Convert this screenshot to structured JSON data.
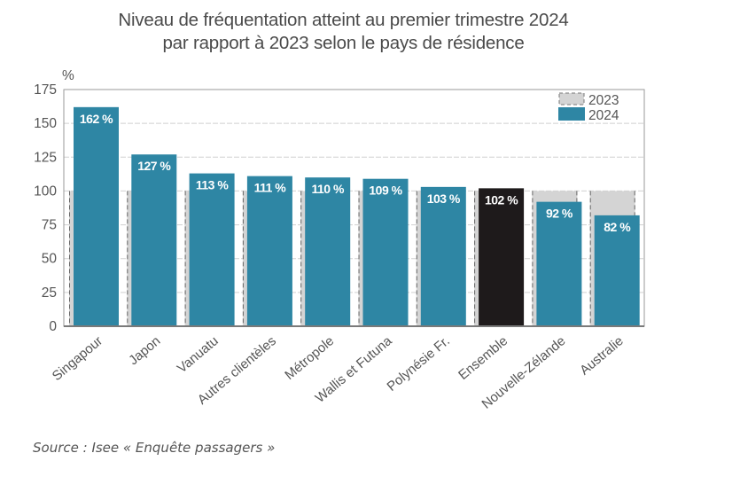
{
  "chart_data": {
    "type": "bar",
    "title_line1": "Niveau de fréquentation atteint au premier trimestre 2024",
    "title_line2": "par rapport à 2023 selon le pays de résidence",
    "ylabel": "%",
    "xlabel": "",
    "ylim": [
      0,
      175
    ],
    "yticks": [
      0,
      25,
      50,
      75,
      100,
      125,
      150,
      175
    ],
    "grid": true,
    "legend_position": "top-right",
    "categories": [
      "Singapour",
      "Japon",
      "Vanuatu",
      "Autres clientèles",
      "Métropole",
      "Wallis et Futuna",
      "Polynésie Fr.",
      "Ensemble",
      "Nouvelle-Zélande",
      "Australie"
    ],
    "series": [
      {
        "name": "2023",
        "values": [
          100,
          100,
          100,
          100,
          100,
          100,
          100,
          100,
          100,
          100
        ],
        "color": "#d4d4d4",
        "style": "dashed-outline"
      },
      {
        "name": "2024",
        "values": [
          162,
          127,
          113,
          111,
          110,
          109,
          103,
          102,
          92,
          82
        ],
        "color": "#2e86a4",
        "highlight": {
          "category": "Ensemble",
          "color": "#1e1a1b"
        }
      }
    ],
    "data_labels": [
      "162 %",
      "127 %",
      "113 %",
      "111 %",
      "110 %",
      "109 %",
      "103 %",
      "102 %",
      "92 %",
      "82 %"
    ]
  },
  "source": "Source : Isee « Enquête passagers »"
}
